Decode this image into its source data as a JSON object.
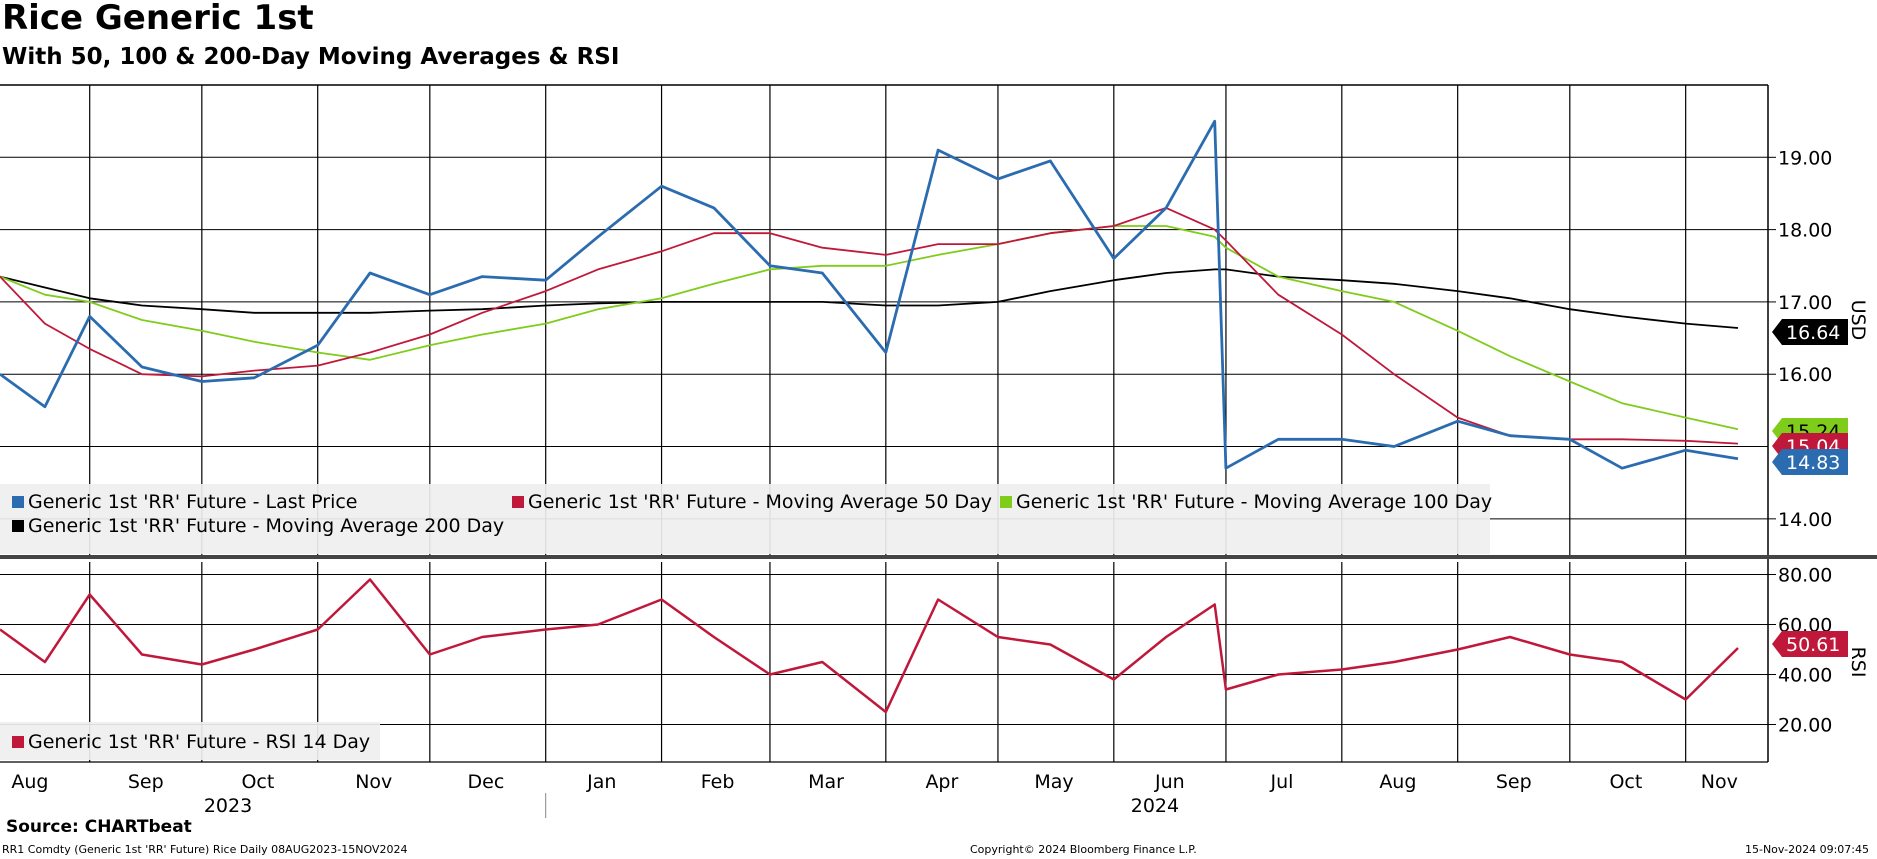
{
  "header": {
    "title": "Rice Generic 1st",
    "subtitle": "With 50, 100 & 200-Day Moving Averages & RSI"
  },
  "footer": {
    "source": "Source: CHARTbeat",
    "left": "RR1 Comdty (Generic 1st 'RR' Future) Rice  Daily 08AUG2023-15NOV2024",
    "middle": "Copyright© 2024 Bloomberg Finance L.P.",
    "right": "15-Nov-2024 09:07:45"
  },
  "colors": {
    "last_price": "#2b6cb0",
    "ma50": "#c0183a",
    "ma100": "#7fcc1b",
    "ma200": "#000000",
    "rsi": "#c0183a"
  },
  "chart_data": [
    {
      "type": "line",
      "panel": "price",
      "ylabel": "USD",
      "ylim": [
        13.5,
        20.0
      ],
      "yticks": [
        "19.00",
        "18.00",
        "17.00",
        "16.00",
        "14.00"
      ],
      "grid": true,
      "legend_position": "bottom-left",
      "x_labels": [
        "Aug",
        "Sep",
        "Oct",
        "Nov",
        "Dec",
        "Jan",
        "Feb",
        "Mar",
        "Apr",
        "May",
        "Jun",
        "Jul",
        "Aug",
        "Sep",
        "Oct",
        "Nov"
      ],
      "x_years": [
        "2023",
        "2024"
      ],
      "x": [
        "2023-08-08",
        "2023-08-20",
        "2023-09-01",
        "2023-09-15",
        "2023-10-01",
        "2023-10-15",
        "2023-11-01",
        "2023-11-15",
        "2023-12-01",
        "2023-12-15",
        "2024-01-01",
        "2024-01-15",
        "2024-02-01",
        "2024-02-15",
        "2024-03-01",
        "2024-03-15",
        "2024-04-01",
        "2024-04-15",
        "2024-05-01",
        "2024-05-15",
        "2024-06-01",
        "2024-06-15",
        "2024-06-28",
        "2024-07-01",
        "2024-07-15",
        "2024-08-01",
        "2024-08-15",
        "2024-09-01",
        "2024-09-15",
        "2024-10-01",
        "2024-10-15",
        "2024-11-01",
        "2024-11-15"
      ],
      "series": [
        {
          "name": "Generic 1st 'RR' Future - Last Price",
          "values": [
            16.0,
            15.55,
            16.8,
            16.1,
            15.9,
            15.95,
            16.4,
            17.4,
            17.1,
            17.35,
            17.3,
            17.9,
            18.6,
            18.3,
            17.5,
            17.4,
            16.3,
            19.1,
            18.7,
            18.95,
            17.6,
            18.3,
            19.5,
            14.7,
            15.1,
            15.1,
            15.0,
            15.35,
            15.15,
            15.1,
            14.7,
            14.95,
            14.83
          ],
          "last_value": "14.83"
        },
        {
          "name": "Generic 1st 'RR' Future - Moving Average 50 Day",
          "values": [
            17.35,
            16.7,
            16.35,
            16.0,
            15.97,
            16.05,
            16.12,
            16.3,
            16.55,
            16.85,
            17.15,
            17.45,
            17.7,
            17.95,
            17.95,
            17.75,
            17.65,
            17.8,
            17.8,
            17.95,
            18.05,
            18.3,
            18.0,
            17.85,
            17.1,
            16.55,
            16.0,
            15.4,
            15.15,
            15.1,
            15.1,
            15.08,
            15.04
          ],
          "last_value": "15.04"
        },
        {
          "name": "Generic 1st 'RR' Future - Moving Average 100 Day",
          "values": [
            17.35,
            17.1,
            17.0,
            16.75,
            16.6,
            16.45,
            16.3,
            16.2,
            16.4,
            16.55,
            16.7,
            16.9,
            17.05,
            17.25,
            17.45,
            17.5,
            17.5,
            17.65,
            17.8,
            17.95,
            18.05,
            18.05,
            17.9,
            17.75,
            17.35,
            17.15,
            17.0,
            16.6,
            16.25,
            15.9,
            15.6,
            15.4,
            15.24
          ],
          "last_value": "15.24"
        },
        {
          "name": "Generic 1st 'RR' Future - Moving Average 200 Day",
          "values": [
            17.35,
            17.2,
            17.05,
            16.95,
            16.9,
            16.85,
            16.85,
            16.85,
            16.88,
            16.9,
            16.95,
            16.98,
            17.0,
            17.0,
            17.0,
            17.0,
            16.95,
            16.95,
            17.0,
            17.15,
            17.3,
            17.4,
            17.45,
            17.45,
            17.35,
            17.3,
            17.25,
            17.15,
            17.05,
            16.9,
            16.8,
            16.7,
            16.64
          ],
          "last_value": "16.64"
        }
      ]
    },
    {
      "type": "line",
      "panel": "rsi",
      "ylabel": "RSI",
      "ylim": [
        5,
        85
      ],
      "yticks": [
        "80.00",
        "60.00",
        "40.00",
        "20.00"
      ],
      "grid": true,
      "legend_position": "bottom-left",
      "x": [
        "2023-08-08",
        "2023-08-20",
        "2023-09-01",
        "2023-09-15",
        "2023-10-01",
        "2023-10-15",
        "2023-11-01",
        "2023-11-15",
        "2023-12-01",
        "2023-12-15",
        "2024-01-01",
        "2024-01-15",
        "2024-02-01",
        "2024-02-15",
        "2024-03-01",
        "2024-03-15",
        "2024-04-01",
        "2024-04-15",
        "2024-05-01",
        "2024-05-15",
        "2024-06-01",
        "2024-06-15",
        "2024-06-28",
        "2024-07-01",
        "2024-07-15",
        "2024-08-01",
        "2024-08-15",
        "2024-09-01",
        "2024-09-15",
        "2024-10-01",
        "2024-10-15",
        "2024-11-01",
        "2024-11-15"
      ],
      "series": [
        {
          "name": "Generic 1st 'RR' Future - RSI 14 Day",
          "values": [
            58,
            45,
            72,
            48,
            44,
            50,
            58,
            78,
            48,
            55,
            58,
            60,
            70,
            55,
            40,
            45,
            25,
            70,
            55,
            52,
            38,
            55,
            68,
            34,
            40,
            42,
            45,
            50,
            55,
            48,
            45,
            30,
            50.61
          ],
          "last_value": "50.61"
        }
      ]
    }
  ]
}
